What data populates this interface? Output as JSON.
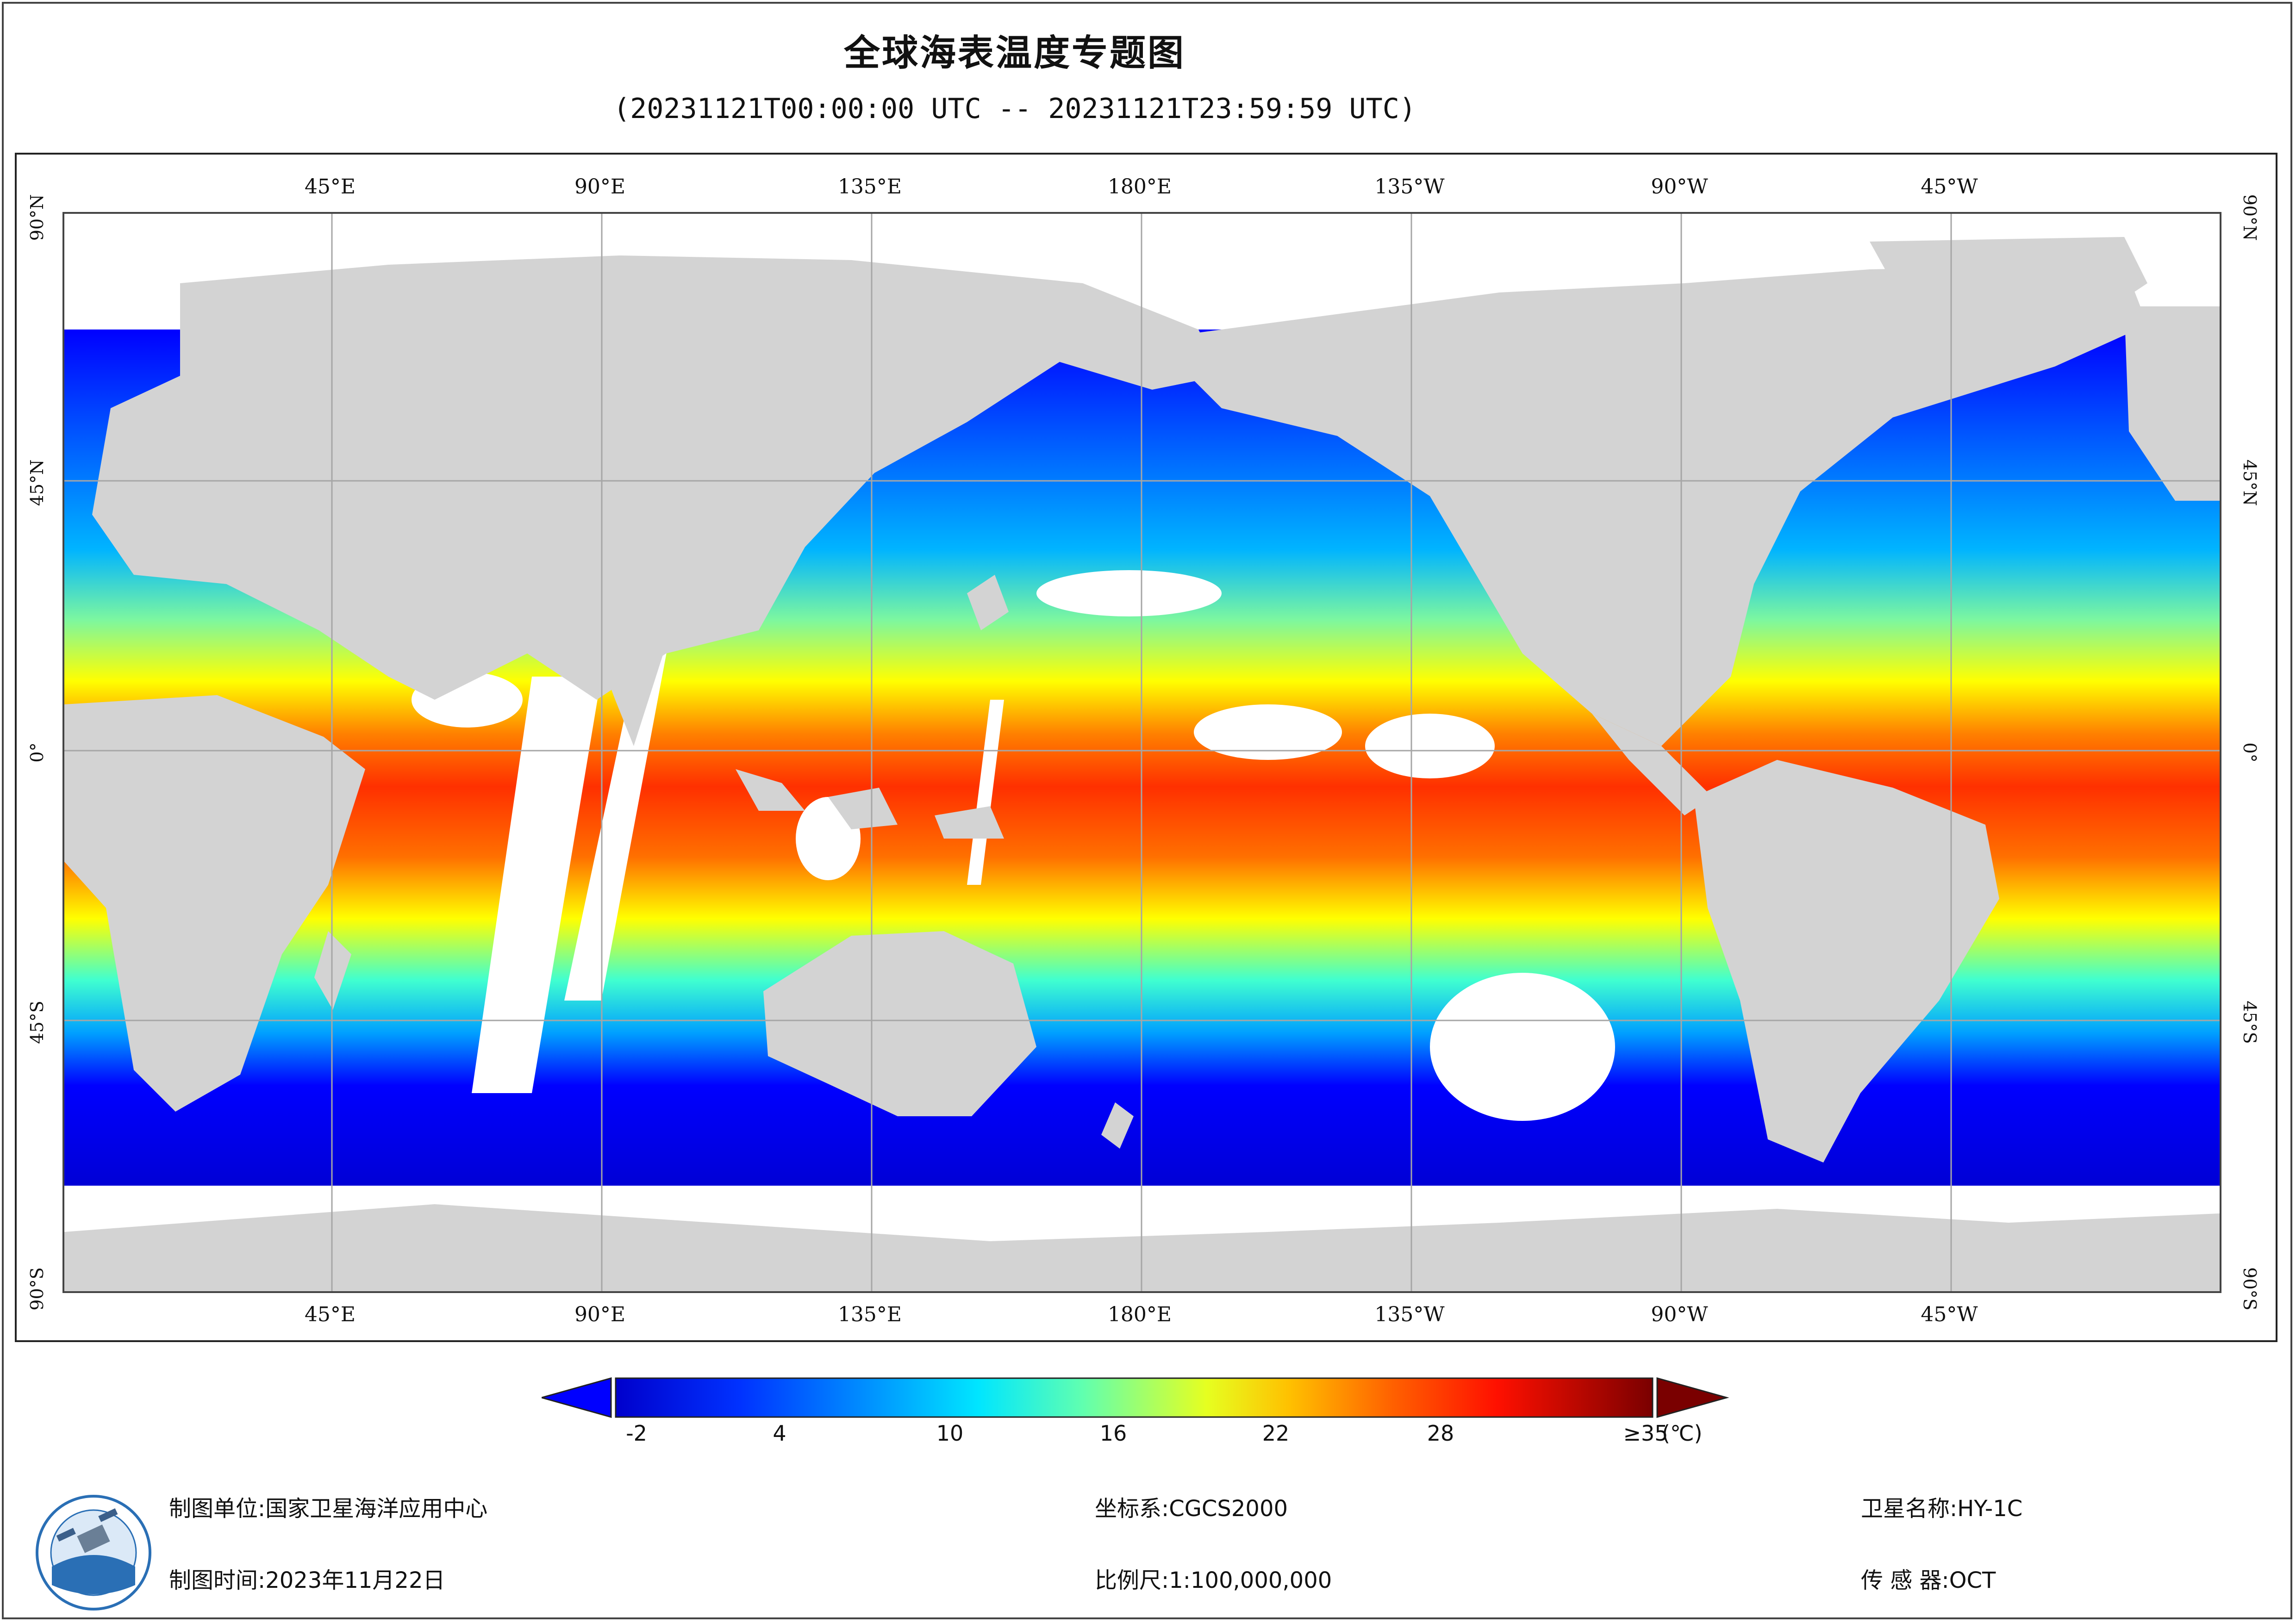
{
  "title": "全球海表温度专题图",
  "subtitle": "(20231121T00:00:00 UTC -- 20231121T23:59:59 UTC)",
  "map": {
    "lon_labels": [
      "45°E",
      "90°E",
      "135°E",
      "180°E",
      "135°W",
      "90°W",
      "45°W"
    ],
    "lat_labels": [
      "90°N",
      "45°N",
      "0°",
      "45°S",
      "90°S"
    ],
    "land_color": "#d3d3d3",
    "no_data_color": "#ffffff",
    "grid_color": "#a6a6a6"
  },
  "colorbar": {
    "ticks": [
      "-2",
      "4",
      "10",
      "16",
      "22",
      "28",
      "≥35"
    ],
    "unit": "(℃)",
    "min": -2,
    "max": 35,
    "colors": [
      "#00008b",
      "#0000ff",
      "#0064ff",
      "#00c8ff",
      "#40ffd0",
      "#a0ff60",
      "#ffff00",
      "#ffa000",
      "#ff4000",
      "#d00000",
      "#7a0000"
    ]
  },
  "footer": {
    "unit_label": "制图单位:",
    "unit_value": "国家卫星海洋应用中心",
    "time_label": "制图时间:",
    "time_value": "2023年11月22日",
    "crs_label": "坐标系:",
    "crs_value": "CGCS2000",
    "scale_label": "比例尺:",
    "scale_value": "1:100,000,000",
    "satellite_label": "卫星名称:",
    "satellite_value": "HY-1C",
    "sensor_label": "传 感 器:",
    "sensor_value": "OCT"
  },
  "logo_icon": "nsoas-logo-icon"
}
